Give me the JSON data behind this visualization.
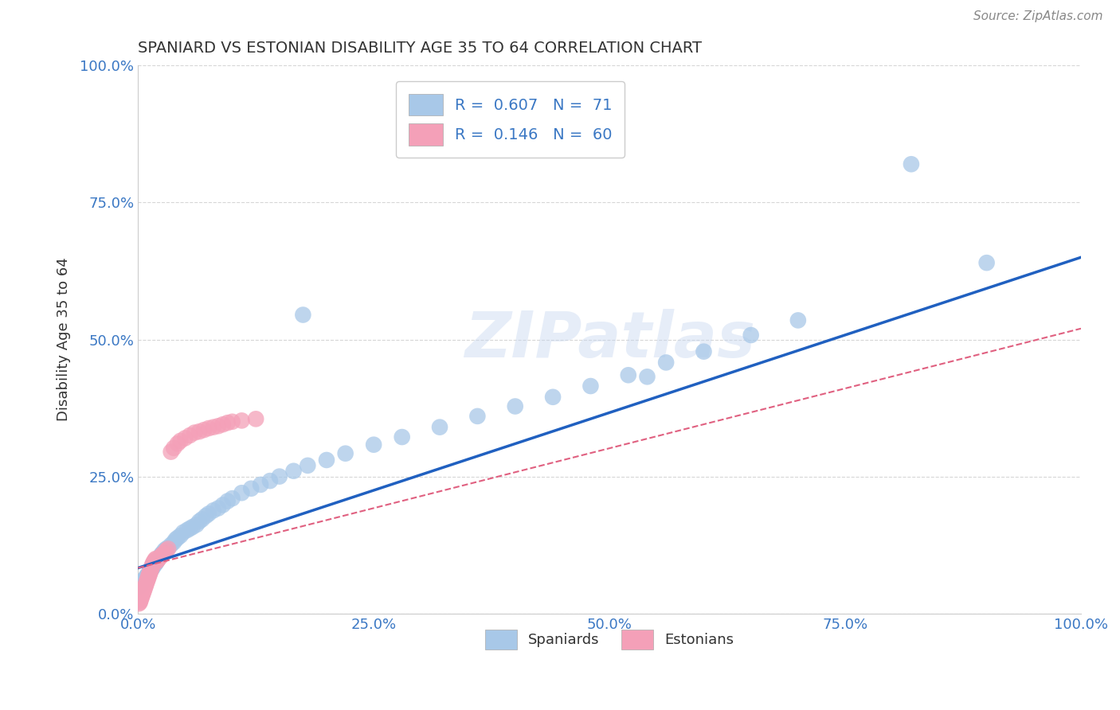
{
  "title": "SPANIARD VS ESTONIAN DISABILITY AGE 35 TO 64 CORRELATION CHART",
  "source_text": "Source: ZipAtlas.com",
  "ylabel": "Disability Age 35 to 64",
  "xlim": [
    0.0,
    1.0
  ],
  "ylim": [
    0.0,
    1.0
  ],
  "xtick_labels": [
    "0.0%",
    "25.0%",
    "50.0%",
    "75.0%",
    "100.0%"
  ],
  "xtick_positions": [
    0.0,
    0.25,
    0.5,
    0.75,
    1.0
  ],
  "ytick_labels": [
    "0.0%",
    "25.0%",
    "50.0%",
    "75.0%",
    "100.0%"
  ],
  "ytick_positions": [
    0.0,
    0.25,
    0.5,
    0.75,
    1.0
  ],
  "spaniard_color": "#a8c8e8",
  "estonian_color": "#f4a0b8",
  "spaniard_line_color": "#2060c0",
  "estonian_line_color": "#e06080",
  "R_spaniard": 0.607,
  "N_spaniard": 71,
  "R_estonian": 0.146,
  "N_estonian": 60,
  "legend_label_spaniard": "Spaniards",
  "legend_label_estonian": "Estonians",
  "background_color": "#ffffff",
  "grid_color": "#cccccc",
  "title_color": "#333333",
  "axis_label_color": "#3b78c4",
  "watermark": "ZIPatlas",
  "spaniard_x": [
    0.002,
    0.003,
    0.004,
    0.005,
    0.006,
    0.007,
    0.008,
    0.009,
    0.01,
    0.011,
    0.012,
    0.013,
    0.014,
    0.015,
    0.016,
    0.017,
    0.018,
    0.019,
    0.02,
    0.021,
    0.022,
    0.024,
    0.025,
    0.026,
    0.028,
    0.03,
    0.032,
    0.035,
    0.038,
    0.04,
    0.042,
    0.045,
    0.048,
    0.052,
    0.055,
    0.058,
    0.062,
    0.065,
    0.068,
    0.072,
    0.075,
    0.08,
    0.085,
    0.09,
    0.095,
    0.1,
    0.11,
    0.12,
    0.13,
    0.14,
    0.15,
    0.165,
    0.18,
    0.2,
    0.22,
    0.25,
    0.28,
    0.32,
    0.36,
    0.4,
    0.44,
    0.48,
    0.52,
    0.56,
    0.6,
    0.65,
    0.7,
    0.175,
    0.54,
    0.82,
    0.9
  ],
  "spaniard_y": [
    0.05,
    0.052,
    0.055,
    0.058,
    0.06,
    0.062,
    0.065,
    0.068,
    0.07,
    0.072,
    0.075,
    0.078,
    0.08,
    0.082,
    0.085,
    0.088,
    0.09,
    0.092,
    0.095,
    0.098,
    0.1,
    0.105,
    0.108,
    0.11,
    0.115,
    0.118,
    0.12,
    0.125,
    0.13,
    0.135,
    0.138,
    0.142,
    0.148,
    0.152,
    0.155,
    0.158,
    0.162,
    0.168,
    0.172,
    0.178,
    0.182,
    0.188,
    0.192,
    0.198,
    0.205,
    0.21,
    0.22,
    0.228,
    0.235,
    0.242,
    0.25,
    0.26,
    0.27,
    0.28,
    0.292,
    0.308,
    0.322,
    0.34,
    0.36,
    0.378,
    0.395,
    0.415,
    0.435,
    0.458,
    0.478,
    0.508,
    0.535,
    0.545,
    0.432,
    0.82,
    0.64
  ],
  "estonian_x": [
    0.001,
    0.002,
    0.002,
    0.003,
    0.003,
    0.004,
    0.004,
    0.005,
    0.005,
    0.006,
    0.006,
    0.007,
    0.007,
    0.008,
    0.008,
    0.009,
    0.009,
    0.01,
    0.01,
    0.011,
    0.011,
    0.012,
    0.012,
    0.013,
    0.013,
    0.014,
    0.014,
    0.015,
    0.015,
    0.016,
    0.016,
    0.017,
    0.018,
    0.019,
    0.02,
    0.021,
    0.022,
    0.023,
    0.025,
    0.026,
    0.028,
    0.03,
    0.032,
    0.035,
    0.038,
    0.042,
    0.045,
    0.05,
    0.055,
    0.06,
    0.065,
    0.07,
    0.075,
    0.08,
    0.085,
    0.09,
    0.095,
    0.1,
    0.11,
    0.125
  ],
  "estonian_y": [
    0.018,
    0.02,
    0.022,
    0.025,
    0.028,
    0.03,
    0.032,
    0.035,
    0.038,
    0.04,
    0.042,
    0.045,
    0.048,
    0.05,
    0.052,
    0.055,
    0.058,
    0.06,
    0.062,
    0.065,
    0.068,
    0.07,
    0.072,
    0.075,
    0.078,
    0.08,
    0.082,
    0.085,
    0.088,
    0.09,
    0.092,
    0.095,
    0.098,
    0.1,
    0.095,
    0.098,
    0.1,
    0.102,
    0.105,
    0.108,
    0.11,
    0.115,
    0.118,
    0.295,
    0.302,
    0.31,
    0.315,
    0.32,
    0.325,
    0.33,
    0.332,
    0.335,
    0.338,
    0.34,
    0.342,
    0.345,
    0.348,
    0.35,
    0.352,
    0.355
  ],
  "spaniard_line_x": [
    0.0,
    1.0
  ],
  "spaniard_line_y": [
    0.085,
    0.65
  ],
  "estonian_line_x": [
    0.0,
    1.0
  ],
  "estonian_line_y": [
    0.085,
    0.55
  ]
}
